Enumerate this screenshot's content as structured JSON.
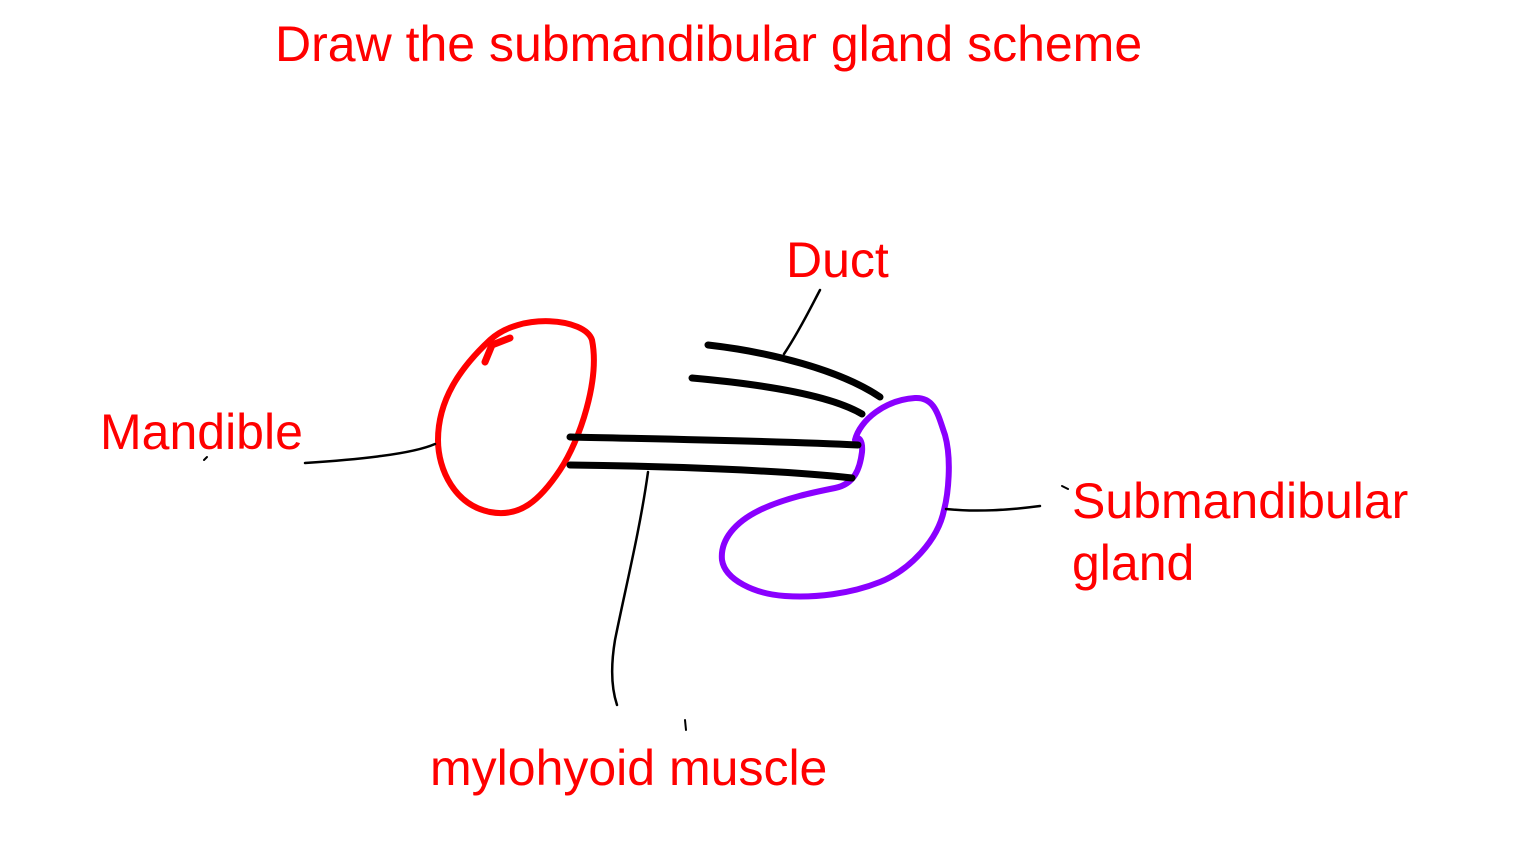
{
  "title": "Draw the submandibular gland scheme",
  "labels": {
    "duct": "Duct",
    "mandible": "Mandible",
    "gland_line1": "Submandibular",
    "gland_line2": "gland",
    "muscle": "mylohyoid muscle"
  },
  "colors": {
    "label_text": "#ff0000",
    "mandible_outline": "#ff0000",
    "gland_outline": "#8a00ff",
    "structure_lines": "#000000",
    "leader_lines": "#000000",
    "background": "#ffffff"
  }
}
